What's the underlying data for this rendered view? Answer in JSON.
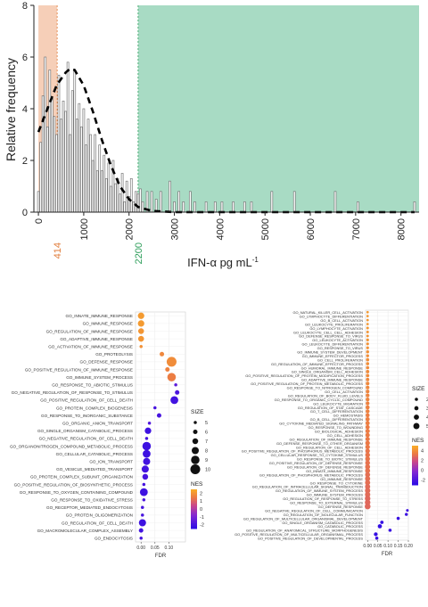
{
  "figure": {
    "top_panel": {
      "ylabel": "Relative frequency",
      "xlabel": "IFN-α pg mL",
      "xlabel_sup": "-1",
      "x_ticks": [
        "0",
        "1000",
        "2000",
        "3000",
        "4000",
        "5000",
        "6000",
        "7000",
        "8000"
      ],
      "y_ticks": [
        "0",
        "2",
        "4",
        "6",
        "8"
      ],
      "marker_labels": [
        {
          "text": "414",
          "value": 414,
          "color": "#e07b39"
        },
        {
          "text": "2200",
          "value": 2200,
          "color": "#2e9e5b"
        }
      ]
    },
    "colors": {
      "low_region": "#f6cfb8",
      "high_region": "#a8dbc4",
      "bar_fill": "#ffffff",
      "bar_stroke": "#777777",
      "curve": "#000000"
    }
  },
  "chart_data": [
    {
      "type": "bar",
      "title": "",
      "ylabel": "Relative frequency",
      "xlabel": "IFN-α pg mL-1",
      "xlim": [
        -100,
        8400
      ],
      "ylim": [
        0,
        8
      ],
      "grid": false,
      "shaded_regions": [
        {
          "from": 0,
          "to": 414,
          "color": "#f6cfb8"
        },
        {
          "from": 2200,
          "to": 8400,
          "color": "#a8dbc4"
        }
      ],
      "bin_width": 50,
      "bins": [
        {
          "x": 0,
          "y": 0.8
        },
        {
          "x": 50,
          "y": 2.7
        },
        {
          "x": 100,
          "y": 4.5
        },
        {
          "x": 150,
          "y": 6.0
        },
        {
          "x": 200,
          "y": 3.3
        },
        {
          "x": 250,
          "y": 5.5
        },
        {
          "x": 300,
          "y": 4.4
        },
        {
          "x": 350,
          "y": 3.7
        },
        {
          "x": 400,
          "y": 3.0
        },
        {
          "x": 450,
          "y": 5.3
        },
        {
          "x": 500,
          "y": 3.6
        },
        {
          "x": 550,
          "y": 4.3
        },
        {
          "x": 600,
          "y": 3.9
        },
        {
          "x": 650,
          "y": 5.8
        },
        {
          "x": 700,
          "y": 3.0
        },
        {
          "x": 750,
          "y": 4.7
        },
        {
          "x": 800,
          "y": 5.5
        },
        {
          "x": 850,
          "y": 3.6
        },
        {
          "x": 900,
          "y": 4.2
        },
        {
          "x": 950,
          "y": 3.3
        },
        {
          "x": 1000,
          "y": 4.0
        },
        {
          "x": 1050,
          "y": 2.6
        },
        {
          "x": 1100,
          "y": 3.6
        },
        {
          "x": 1150,
          "y": 3.0
        },
        {
          "x": 1200,
          "y": 2.0
        },
        {
          "x": 1250,
          "y": 3.0
        },
        {
          "x": 1300,
          "y": 1.6
        },
        {
          "x": 1350,
          "y": 2.6
        },
        {
          "x": 1400,
          "y": 1.6
        },
        {
          "x": 1450,
          "y": 2.2
        },
        {
          "x": 1500,
          "y": 1.3
        },
        {
          "x": 1550,
          "y": 1.9
        },
        {
          "x": 1600,
          "y": 1.0
        },
        {
          "x": 1650,
          "y": 2.0
        },
        {
          "x": 1700,
          "y": 1.1
        },
        {
          "x": 1750,
          "y": 1.3
        },
        {
          "x": 1800,
          "y": 0.7
        },
        {
          "x": 1850,
          "y": 1.5
        },
        {
          "x": 1900,
          "y": 0.4
        },
        {
          "x": 1950,
          "y": 1.2
        },
        {
          "x": 2000,
          "y": 0.6
        },
        {
          "x": 2050,
          "y": 1.3
        },
        {
          "x": 2100,
          "y": 0.4
        },
        {
          "x": 2150,
          "y": 0.8
        },
        {
          "x": 2200,
          "y": 0.7
        },
        {
          "x": 2250,
          "y": 0.9
        },
        {
          "x": 2300,
          "y": 0.4
        },
        {
          "x": 2400,
          "y": 0.8
        },
        {
          "x": 2500,
          "y": 0.8
        },
        {
          "x": 2600,
          "y": 0.5
        },
        {
          "x": 2700,
          "y": 0.8
        },
        {
          "x": 2900,
          "y": 1.2
        },
        {
          "x": 3000,
          "y": 0.4
        },
        {
          "x": 3100,
          "y": 0.8
        },
        {
          "x": 3200,
          "y": 0.4
        },
        {
          "x": 3350,
          "y": 0.8
        },
        {
          "x": 3450,
          "y": 0.4
        },
        {
          "x": 3700,
          "y": 0.4
        },
        {
          "x": 3900,
          "y": 0.4
        },
        {
          "x": 4050,
          "y": 0.4
        },
        {
          "x": 4300,
          "y": 0.4
        },
        {
          "x": 4550,
          "y": 0.4
        },
        {
          "x": 4700,
          "y": 0.4
        },
        {
          "x": 5150,
          "y": 0.8
        },
        {
          "x": 5650,
          "y": 0.8
        },
        {
          "x": 6550,
          "y": 0.8
        },
        {
          "x": 7050,
          "y": 0.4
        },
        {
          "x": 8300,
          "y": 0.4
        }
      ],
      "density_curve": [
        {
          "x": 0,
          "y": 3.1
        },
        {
          "x": 200,
          "y": 4.0
        },
        {
          "x": 400,
          "y": 4.9
        },
        {
          "x": 600,
          "y": 5.4
        },
        {
          "x": 700,
          "y": 5.55
        },
        {
          "x": 800,
          "y": 5.5
        },
        {
          "x": 1000,
          "y": 4.9
        },
        {
          "x": 1200,
          "y": 3.9
        },
        {
          "x": 1400,
          "y": 2.8
        },
        {
          "x": 1600,
          "y": 1.8
        },
        {
          "x": 1800,
          "y": 1.0
        },
        {
          "x": 2000,
          "y": 0.5
        },
        {
          "x": 2200,
          "y": 0.2
        },
        {
          "x": 2500,
          "y": 0.05
        },
        {
          "x": 3000,
          "y": 0.0
        },
        {
          "x": 8300,
          "y": 0.0
        }
      ],
      "reference_lines": [
        {
          "x": 414,
          "label": "414"
        },
        {
          "x": 2200,
          "label": "2200"
        }
      ]
    },
    {
      "type": "scatter",
      "title": "",
      "xlabel": "FDR",
      "xlim": [
        -0.02,
        0.16
      ],
      "x_ticks": [
        0.0,
        0.05,
        0.1
      ],
      "x_tick_labels": [
        "0.00",
        "0.05",
        "0.10"
      ],
      "size_legend": {
        "title": "SIZE",
        "values": [
          5,
          6,
          7,
          8,
          9,
          10
        ]
      },
      "color_legend": {
        "title": "NES",
        "ticks": [
          2,
          1,
          0,
          -1,
          -2
        ],
        "min": -2.5,
        "max": 2.5
      },
      "categories": [
        "GO_INNATE_IMMUNE_RESPONSE",
        "GO_IMMUNE_RESPONSE",
        "GO_REGULATION_OF_IMMUNE_RESPONSE",
        "GO_ADAPTIVE_IMMUNE_RESPONSE",
        "GO_ACTIVATION_OF_IMMUNE_RESPONSE",
        "GO_PROTEOLYSIS",
        "GO_DEFENSE_RESPONSE",
        "GO_POSITIVE_REGULATION_OF_IMMUNE_RESPONSE",
        "GO_IMMUNE_SYSTEM_PROCESS",
        "GO_RESPONSE_TO_ABIOTIC_STIMULUS",
        "GO_NEGATIVE_REGULATION_OF_RESPONSE_TO_STIMULUS",
        "GO_POSITIVE_REGULATION_OF_CELL_DEATH",
        "GO_PROTEIN_COMPLEX_BIOGENESIS",
        "GO_RESPONSE_TO_INORGANIC_SUBSTANCE",
        "GO_ORGANIC_ANION_TRANSPORT",
        "GO_SINGLE_ORGANISM_CATABOLIC_PROCESS",
        "GO_NEGATIVE_REGULATION_OF_CELL_DEATH",
        "GO_ORGANONITROGEN_COMPOUND_METABOLIC_PROCESS",
        "GO_CELLULAR_CATABOLIC_PROCESS",
        "GO_ION_TRANSPORT",
        "GO_VESICLE_MEDIATED_TRANSPORT",
        "GO_PROTEIN_COMPLEX_SUBUNIT_ORGANIZATION",
        "GO_POSITIVE_REGULATION_OF_BIOSYNTHETIC_PROCESS",
        "GO_RESPONSE_TO_OXYGEN_CONTAINING_COMPOUND",
        "GO_RESPONSE_TO_OXIDATIVE_STRESS",
        "GO_RECEPTOR_MEDIATED_ENDOCYTOSIS",
        "GO_PROTEIN_OLIGOMERIZATION",
        "GO_REGULATION_OF_CELL_DEATH",
        "GO_MACROMOLECULAR_COMPLEX_ASSEMBLY",
        "GO_ENDOCYTOSIS"
      ],
      "points": [
        {
          "fdr": 0.0,
          "size": 7.5,
          "nes": 2.2
        },
        {
          "fdr": 0.0,
          "size": 7.5,
          "nes": 2.2
        },
        {
          "fdr": 0.0,
          "size": 7.0,
          "nes": 2.1
        },
        {
          "fdr": 0.0,
          "size": 7.0,
          "nes": 2.1
        },
        {
          "fdr": 0.0,
          "size": 5.0,
          "nes": 2.0
        },
        {
          "fdr": 0.075,
          "size": 6.0,
          "nes": 1.8
        },
        {
          "fdr": 0.11,
          "size": 10.0,
          "nes": 1.9
        },
        {
          "fdr": 0.095,
          "size": 6.0,
          "nes": 1.7
        },
        {
          "fdr": 0.11,
          "size": 9.0,
          "nes": 1.6
        },
        {
          "fdr": 0.125,
          "size": 5.0,
          "nes": -1.5
        },
        {
          "fdr": 0.13,
          "size": 6.0,
          "nes": -1.8
        },
        {
          "fdr": 0.12,
          "size": 8.5,
          "nes": -2.0
        },
        {
          "fdr": 0.05,
          "size": 5.0,
          "nes": -1.9
        },
        {
          "fdr": 0.065,
          "size": 6.0,
          "nes": -1.9
        },
        {
          "fdr": 0.03,
          "size": 5.0,
          "nes": -1.7
        },
        {
          "fdr": 0.025,
          "size": 7.5,
          "nes": -2.1
        },
        {
          "fdr": 0.02,
          "size": 5.0,
          "nes": -1.9
        },
        {
          "fdr": 0.02,
          "size": 9.0,
          "nes": -2.1
        },
        {
          "fdr": 0.02,
          "size": 8.5,
          "nes": -2.1
        },
        {
          "fdr": 0.02,
          "size": 8.0,
          "nes": -2.0
        },
        {
          "fdr": 0.015,
          "size": 8.0,
          "nes": -2.0
        },
        {
          "fdr": 0.015,
          "size": 7.0,
          "nes": -1.9
        },
        {
          "fdr": 0.01,
          "size": 5.0,
          "nes": -1.9
        },
        {
          "fdr": 0.01,
          "size": 8.5,
          "nes": -2.1
        },
        {
          "fdr": 0.01,
          "size": 5.0,
          "nes": -1.8
        },
        {
          "fdr": 0.005,
          "size": 5.0,
          "nes": -1.9
        },
        {
          "fdr": 0.005,
          "size": 5.0,
          "nes": -1.9
        },
        {
          "fdr": 0.005,
          "size": 8.0,
          "nes": -2.1
        },
        {
          "fdr": 0.0,
          "size": 6.0,
          "nes": -2.0
        },
        {
          "fdr": 0.0,
          "size": 5.0,
          "nes": -1.9
        }
      ]
    },
    {
      "type": "scatter",
      "title": "",
      "xlabel": "FDR",
      "xlim": [
        -0.01,
        0.2
      ],
      "x_ticks": [
        0.0,
        0.05,
        0.1,
        0.15,
        0.2
      ],
      "x_tick_labels": [
        "0.00",
        "0.05",
        "0.10",
        "0.15",
        "0.20"
      ],
      "size_legend": {
        "title": "SIZE",
        "values": [
          20,
          30,
          40,
          50
        ]
      },
      "color_legend": {
        "title": "NES",
        "ticks": [
          4,
          2,
          0,
          -2
        ],
        "min": -3,
        "max": 5
      },
      "categories": [
        "GO_NATURAL_KILLER_CELL_ACTIVATION",
        "GO_LYMPHOCYTE_DIFFERENTIATION",
        "GO_B_CELL_ACTIVATION",
        "GO_LEUKOCYTE_PROLIFERATION",
        "GO_LYMPHOCYTE_ACTIVATION",
        "GO_LEUKOCYTE_CELL_CELL_ADHESION",
        "GO_DEFENSE_RESPONSE_TO_VIRUS",
        "GO_LEUKOCYTE_ACTIVATION",
        "GO_LEUKOCYTE_DIFFERENTIATION",
        "GO_RESPONSE_TO_VIRUS",
        "GO_IMMUNE_SYSTEM_DEVELOPMENT",
        "GO_IMMUNE_EFFECTOR_PROCESS",
        "GO_CELL_PROLIFERATION",
        "GO_REGULATION_OF_IMMUNE_EFFECTOR_PROCESS",
        "GO_HUMORAL_IMMUNE_RESPONSE",
        "GO_SINGLE_ORGANISM_CELL_ADHESION",
        "GO_POSITIVE_REGULATION_OF_PROTEIN_MODIFICATION_PROCESS",
        "GO_ADAPTIVE_IMMUNE_RESPONSE",
        "GO_POSITIVE_REGULATION_OF_PROTEIN_METABOLIC_PROCESS",
        "GO_RESPONSE_TO_NITROGEN_COMPOUND",
        "GO_CELL_ACTIVATION",
        "GO_REGULATION_OF_BODY_FLUID_LEVELS",
        "GO_RESPONSE_TO_ORGANIC_CYCLIC_COMPOUND",
        "GO_LEUKOCYTE_MIGRATION",
        "GO_REGULATION_OF_STAT_CASCADE",
        "GO_T_CELL_DIFFERENTIATION",
        "GO_HEMOSTASIS",
        "GO_B_CELL_DIFFERENTIATION",
        "GO_CYTOKINE_MEDIATED_SIGNALING_PATHWAY",
        "GO_RESPONSE_TO_WOUNDING",
        "GO_BIOLOGICAL_ADHESION",
        "GO_CELL_ADHESION",
        "GO_REGULATION_OF_IMMUNE_RESPONSE",
        "GO_DEFENSE_RESPONSE_TO_OTHER_ORGANISM",
        "GO_REGULATION_OF_CELL_ADHESION",
        "GO_POSITIVE_REGULATION_OF_PHOSPHORUS_METABOLIC_PROCESS",
        "GO_CELLULAR_RESPONSE_TO_CYTOKINE_STIMULUS",
        "GO_RESPONSE_TO_BIOTIC_STIMULUS",
        "GO_POSITIVE_REGULATION_OF_DEFENSE_RESPONSE",
        "GO_REGULATION_OF_DEFENSE_RESPONSE",
        "GO_INNATE_IMMUNE_RESPONSE",
        "GO_REGULATION_OF_PHOSPHORUS_METABOLIC_PROCESS",
        "GO_IMMUNE_RESPONSE",
        "GO_RESPONSE_TO_CYTOKINE",
        "GO_REGULATION_OF_INTRACELLULAR_SIGNAL_TRANSDUCTION",
        "GO_REGULATION_OF_IMMUNE_SYSTEM_PROCESS",
        "GO_IMMUNE_SYSTEM_PROCESS",
        "GO_REGULATION_OF_RESPONSE_TO_STRESS",
        "GO_RESPONSE_TO_EXTERNAL_STIMULUS",
        "GO_DEFENSE_RESPONSE",
        "GO_NEGATIVE_REGULATION_OF_CELL_COMMUNICATION",
        "GO_REGULATION_OF_MOLECULAR_FUNCTION",
        "GO_REGULATION_OF_MULTICELLULAR_ORGANISMAL_DEVELOPMENT",
        "GO_SINGLE_ORGANISM_CATABOLIC_PROCESS",
        "GO_CATABOLIC_PROCESS",
        "GO_REGULATION_OF_ANATOMICAL_STRUCTURE_MORPHOGENESIS",
        "GO_POSITIVE_REGULATION_OF_MULTICELLULAR_ORGANISMAL_PROCESS",
        "GO_POSITIVE_REGULATION_OF_DEVELOPMENTAL_PROCESS"
      ],
      "points": [
        {
          "fdr": 0.0,
          "size": 12,
          "nes": 4.5
        },
        {
          "fdr": 0.0,
          "size": 12,
          "nes": 4.5
        },
        {
          "fdr": 0.0,
          "size": 12,
          "nes": 4.4
        },
        {
          "fdr": 0.0,
          "size": 12,
          "nes": 4.4
        },
        {
          "fdr": 0.0,
          "size": 14,
          "nes": 4.4
        },
        {
          "fdr": 0.0,
          "size": 14,
          "nes": 4.3
        },
        {
          "fdr": 0.0,
          "size": 14,
          "nes": 4.3
        },
        {
          "fdr": 0.0,
          "size": 16,
          "nes": 4.3
        },
        {
          "fdr": 0.0,
          "size": 16,
          "nes": 4.2
        },
        {
          "fdr": 0.0,
          "size": 16,
          "nes": 4.2
        },
        {
          "fdr": 0.0,
          "size": 18,
          "nes": 4.2
        },
        {
          "fdr": 0.0,
          "size": 18,
          "nes": 4.1
        },
        {
          "fdr": 0.0,
          "size": 20,
          "nes": 4.1
        },
        {
          "fdr": 0.0,
          "size": 20,
          "nes": 4.1
        },
        {
          "fdr": 0.0,
          "size": 20,
          "nes": 4.0
        },
        {
          "fdr": 0.0,
          "size": 22,
          "nes": 4.0
        },
        {
          "fdr": 0.0,
          "size": 22,
          "nes": 4.0
        },
        {
          "fdr": 0.0,
          "size": 22,
          "nes": 3.9
        },
        {
          "fdr": 0.0,
          "size": 24,
          "nes": 3.9
        },
        {
          "fdr": 0.0,
          "size": 24,
          "nes": 3.9
        },
        {
          "fdr": 0.0,
          "size": 24,
          "nes": 3.8
        },
        {
          "fdr": 0.0,
          "size": 26,
          "nes": 3.8
        },
        {
          "fdr": 0.0,
          "size": 26,
          "nes": 3.8
        },
        {
          "fdr": 0.0,
          "size": 26,
          "nes": 3.7
        },
        {
          "fdr": 0.0,
          "size": 28,
          "nes": 3.7
        },
        {
          "fdr": 0.0,
          "size": 28,
          "nes": 3.7
        },
        {
          "fdr": 0.0,
          "size": 28,
          "nes": 3.6
        },
        {
          "fdr": 0.0,
          "size": 30,
          "nes": 3.6
        },
        {
          "fdr": 0.0,
          "size": 30,
          "nes": 3.6
        },
        {
          "fdr": 0.0,
          "size": 30,
          "nes": 3.5
        },
        {
          "fdr": 0.0,
          "size": 32,
          "nes": 3.5
        },
        {
          "fdr": 0.0,
          "size": 32,
          "nes": 3.5
        },
        {
          "fdr": 0.0,
          "size": 32,
          "nes": 3.4
        },
        {
          "fdr": 0.0,
          "size": 34,
          "nes": 3.4
        },
        {
          "fdr": 0.0,
          "size": 34,
          "nes": 3.4
        },
        {
          "fdr": 0.0,
          "size": 34,
          "nes": 3.3
        },
        {
          "fdr": 0.0,
          "size": 36,
          "nes": 3.3
        },
        {
          "fdr": 0.0,
          "size": 36,
          "nes": 3.3
        },
        {
          "fdr": 0.0,
          "size": 36,
          "nes": 3.2
        },
        {
          "fdr": 0.0,
          "size": 38,
          "nes": 3.2
        },
        {
          "fdr": 0.0,
          "size": 38,
          "nes": 3.2
        },
        {
          "fdr": 0.0,
          "size": 38,
          "nes": 3.1
        },
        {
          "fdr": 0.0,
          "size": 40,
          "nes": 3.1
        },
        {
          "fdr": 0.0,
          "size": 40,
          "nes": 3.1
        },
        {
          "fdr": 0.0,
          "size": 40,
          "nes": 3.0
        },
        {
          "fdr": 0.0,
          "size": 42,
          "nes": 3.0
        },
        {
          "fdr": 0.0,
          "size": 42,
          "nes": 3.0
        },
        {
          "fdr": 0.0,
          "size": 44,
          "nes": 2.9
        },
        {
          "fdr": 0.0,
          "size": 44,
          "nes": 2.9
        },
        {
          "fdr": 0.0,
          "size": 46,
          "nes": 2.9
        },
        {
          "fdr": 0.195,
          "size": 15,
          "nes": -2.3
        },
        {
          "fdr": 0.19,
          "size": 18,
          "nes": -2.4
        },
        {
          "fdr": 0.15,
          "size": 20,
          "nes": -2.5
        },
        {
          "fdr": 0.07,
          "size": 22,
          "nes": -2.6
        },
        {
          "fdr": 0.06,
          "size": 30,
          "nes": -2.7
        },
        {
          "fdr": 0.11,
          "size": 20,
          "nes": -2.5
        },
        {
          "fdr": 0.04,
          "size": 26,
          "nes": -2.6
        },
        {
          "fdr": 0.045,
          "size": 20,
          "nes": -2.5
        }
      ]
    }
  ]
}
